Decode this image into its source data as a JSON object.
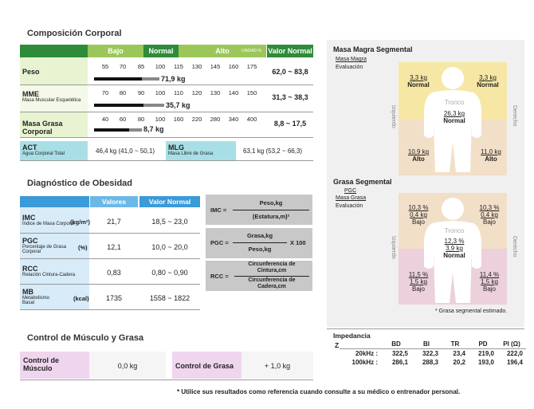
{
  "composition": {
    "title": "Composición Corporal",
    "headers": {
      "low": "Bajo",
      "normal": "Normal",
      "high": "Alto",
      "unit": "UNIDAD %",
      "range": "Valor Normal"
    },
    "rows": [
      {
        "label": "Peso",
        "sub": "",
        "scale": [
          "55",
          "70",
          "85",
          "100",
          "115",
          "130",
          "145",
          "160",
          "175"
        ],
        "value": "71,9 kg",
        "range": "62,0 ~ 83,8",
        "bar_pct": 0.38
      },
      {
        "label": "MME",
        "sub": "Masa Muscular Esquelética",
        "scale": [
          "70",
          "80",
          "90",
          "100",
          "110",
          "120",
          "130",
          "140",
          "150"
        ],
        "value": "35,7 kg",
        "range": "31,3 ~ 38,3",
        "bar_pct": 0.42
      },
      {
        "label": "Masa Grasa Corporal",
        "sub": "",
        "scale": [
          "40",
          "60",
          "80",
          "100",
          "160",
          "220",
          "280",
          "340",
          "400"
        ],
        "value": "8,7 kg",
        "range": "8,8 ~ 17,5",
        "bar_pct": 0.24
      }
    ],
    "act": {
      "label": "ACT",
      "sub": "Agua Corporal Total",
      "value": "46,4 kg (41,0 ~ 50,1)"
    },
    "mlg": {
      "label": "MLG",
      "sub": "Masa Libre de Grasa",
      "value": "63,1 kg (53,2 ~ 66,3)"
    }
  },
  "obesity": {
    "title": "Diagnóstico de Obesidad",
    "headers": {
      "values": "Valores",
      "normal": "Valor Normal"
    },
    "rows": [
      {
        "label": "IMC",
        "sub": "Índice de Masa Corporal",
        "unit": "(kg/m²)",
        "value": "21,7",
        "range": "18,5 ~ 23,0"
      },
      {
        "label": "PGC",
        "sub": "Porcentaje de Grasa Corporal",
        "unit": "(%)",
        "value": "12,1",
        "range": "10,0 ~ 20,0"
      },
      {
        "label": "RCC",
        "sub": "Relación Cintura-Cadera",
        "unit": "",
        "value": "0,83",
        "range": "0,80 ~ 0,90"
      },
      {
        "label": "MB",
        "sub": "Metabolismo Basal",
        "unit": "(kcal)",
        "value": "1735",
        "range": "1558 ~ 1822"
      }
    ],
    "formulas": {
      "imc": {
        "lhs": "IMC =",
        "num": "Peso,kg",
        "den": "(Estatura,m)²"
      },
      "pgc": {
        "lhs": "PGC =",
        "num": "Grasa,kg",
        "den": "Peso,kg",
        "mult": "X 100"
      },
      "rcc": {
        "lhs": "RCC =",
        "num": "Circunferencia de Cintura,cm",
        "den": "Circunferencia de Cadera,cm"
      }
    }
  },
  "control": {
    "title": "Control de Músculo y Grasa",
    "muscle_label": "Control de Músculo",
    "muscle_value": "0,0 kg",
    "fat_label": "Control de Grasa",
    "fat_value": "+ 1,0 kg"
  },
  "lean": {
    "title": "Masa Magra Segmental",
    "sub1": "Masa Magra",
    "sub2": "Evaluación",
    "left_side": "Izquierdo",
    "right_side": "Derecho",
    "trunk_label": "Tronco",
    "ra": {
      "v": "3,3 kg",
      "e": "Normal"
    },
    "la": {
      "v": "3,3 kg",
      "e": "Normal"
    },
    "trunk": {
      "v": "26,3 kg",
      "e": "Normal"
    },
    "rl": {
      "v": "10,9 kg",
      "e": "Alto"
    },
    "ll": {
      "v": "11,0 kg",
      "e": "Alto"
    }
  },
  "fat": {
    "title": "Grasa Segmental",
    "sub1": "PGC",
    "sub2": "Masa Grasa",
    "sub3": "Evaluación",
    "left_side": "Izquierdo",
    "right_side": "Derecho",
    "trunk_label": "Tronco",
    "ra": {
      "p": "10,3 %",
      "v": "0,4 kg",
      "e": "Bajo"
    },
    "la": {
      "p": "10,3 %",
      "v": "0,4 kg",
      "e": "Bajo"
    },
    "trunk": {
      "p": "12,3 %",
      "v": "3,9 kg",
      "e": "Normal"
    },
    "rl": {
      "p": "11,5 %",
      "v": "1,5 kg",
      "e": "Bajo"
    },
    "ll": {
      "p": "11,4 %",
      "v": "1,5 kg",
      "e": "Bajo"
    },
    "note": "* Grasa segmental estimado."
  },
  "impedance": {
    "title": "Impedancia",
    "z": "Z",
    "cols": [
      "BD",
      "BI",
      "TR",
      "PD",
      "PI (Ω)"
    ],
    "rows": [
      {
        "f": "20kHz :",
        "vals": [
          "322,5",
          "322,3",
          "23,4",
          "219,0",
          "222,0"
        ]
      },
      {
        "f": "100kHz :",
        "vals": [
          "286,1",
          "288,3",
          "20,2",
          "193,0",
          "196,4"
        ]
      }
    ]
  },
  "footer": "* Utilice sus resultados como referencia cuando consulte a su médico o entrenador personal."
}
